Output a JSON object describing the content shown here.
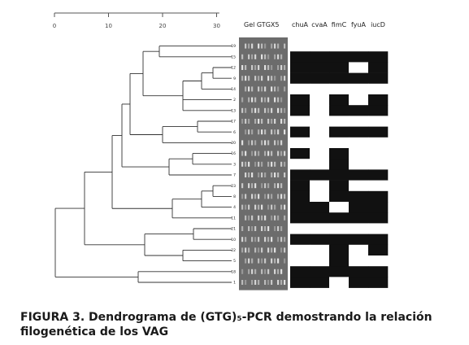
{
  "figure": {
    "axis_ticks": [
      "0",
      "10",
      "20",
      "30"
    ],
    "gel_label": "Gel GTGX5",
    "genes": [
      "chuA",
      "cvaA",
      "fimC",
      "fyuA",
      "iucD"
    ],
    "strains": [
      "19",
      "15",
      "12",
      "9",
      "14",
      "2",
      "13",
      "17",
      "6",
      "20",
      "16",
      "3",
      "7",
      "23",
      "8",
      "4",
      "11",
      "21",
      "10",
      "22",
      "5",
      "18",
      "1"
    ],
    "presence": [
      [
        0,
        0,
        0,
        0,
        0
      ],
      [
        1,
        1,
        1,
        1,
        1
      ],
      [
        1,
        1,
        1,
        0,
        1
      ],
      [
        1,
        1,
        1,
        1,
        1
      ],
      [
        0,
        0,
        0,
        0,
        0
      ],
      [
        1,
        0,
        1,
        0,
        1
      ],
      [
        1,
        0,
        1,
        1,
        1
      ],
      [
        0,
        0,
        0,
        0,
        0
      ],
      [
        1,
        0,
        1,
        1,
        1
      ],
      [
        0,
        0,
        0,
        0,
        0
      ],
      [
        1,
        0,
        1,
        0,
        0
      ],
      [
        0,
        0,
        1,
        0,
        0
      ],
      [
        1,
        1,
        1,
        1,
        1
      ],
      [
        1,
        0,
        1,
        0,
        0
      ],
      [
        1,
        0,
        1,
        1,
        1
      ],
      [
        1,
        1,
        0,
        1,
        1
      ],
      [
        1,
        1,
        1,
        1,
        1
      ],
      [
        0,
        0,
        0,
        0,
        0
      ],
      [
        1,
        1,
        1,
        1,
        1
      ],
      [
        0,
        0,
        1,
        0,
        1
      ],
      [
        0,
        0,
        1,
        0,
        0
      ],
      [
        1,
        1,
        1,
        1,
        1
      ],
      [
        1,
        1,
        0,
        1,
        1
      ]
    ],
    "colors": {
      "present": "#111111",
      "absent": "#ffffff",
      "gel_bg": "#6c6c6c",
      "band": "#e8e8e8"
    }
  },
  "caption": {
    "text": "FIGURA 3. Dendrograma de (GTG)₅-PCR demostrando la relación filogenética de los VAG"
  }
}
